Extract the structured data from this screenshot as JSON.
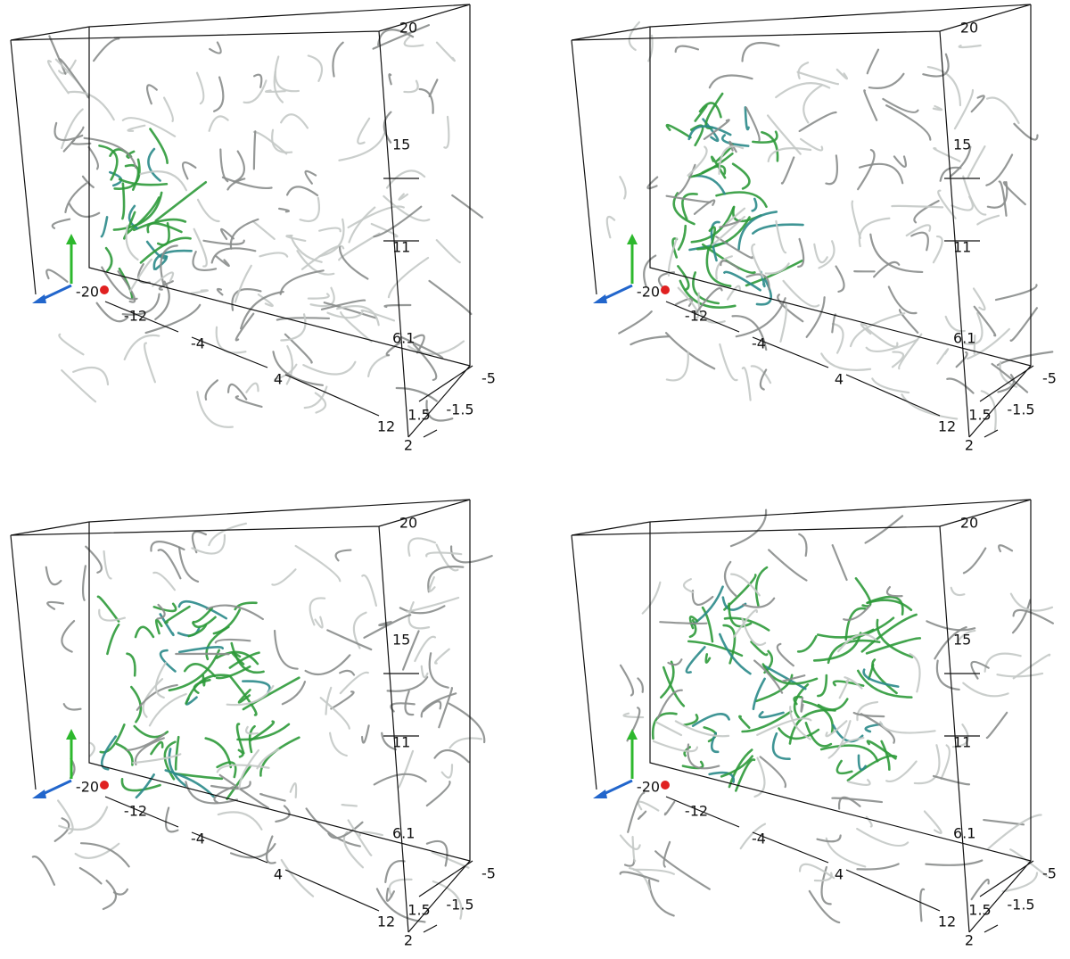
{
  "panels": [
    {
      "ticks": [
        "20",
        "15",
        "11",
        "6.1",
        "-20",
        "-12",
        "-4",
        "4",
        "12",
        "1.5",
        "2",
        "-1.5",
        "-5"
      ]
    },
    {
      "ticks": [
        "20",
        "15",
        "11",
        "6.1",
        "-20",
        "-12",
        "-4",
        "4",
        "12",
        "1.5",
        "2",
        "-1.5",
        "-5"
      ]
    },
    {
      "ticks": [
        "20",
        "15",
        "11",
        "6.1",
        "-20",
        "-12",
        "-4",
        "4",
        "12",
        "1.5",
        "2",
        "-1.5",
        "-5"
      ]
    },
    {
      "ticks": [
        "20",
        "15",
        "11",
        "6.1",
        "-20",
        "-12",
        "-4",
        "4",
        "12",
        "1.5",
        "2",
        "-1.5",
        "-5"
      ]
    }
  ]
}
